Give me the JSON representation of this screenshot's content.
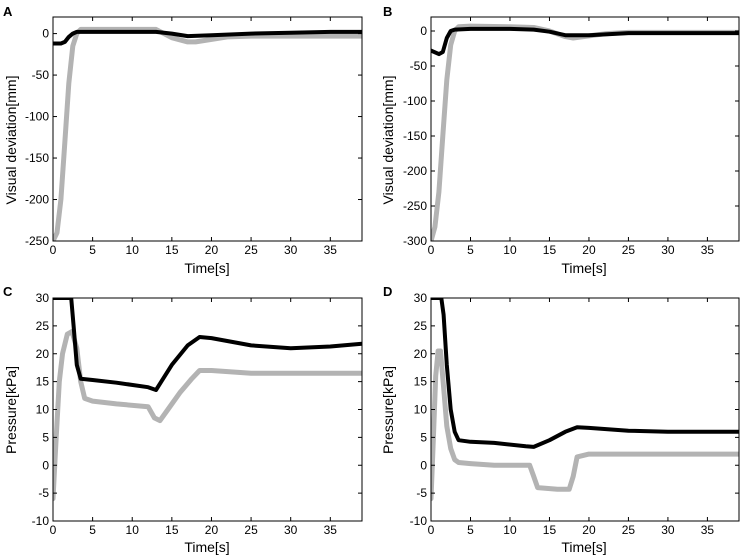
{
  "chart_data": [
    {
      "type": "line",
      "panel": "A",
      "xlabel": "Time[s]",
      "ylabel": "Visual deviation[mm]",
      "xlim": [
        0,
        39
      ],
      "ylim": [
        -250,
        20
      ],
      "xticks": [
        0,
        5,
        10,
        15,
        20,
        25,
        30,
        35
      ],
      "yticks": [
        -250,
        -200,
        -150,
        -100,
        -50,
        0
      ],
      "series": [
        {
          "name": "black",
          "color": "#000000",
          "x": [
            0,
            1,
            1.5,
            2,
            2.5,
            3,
            5,
            10,
            13,
            15,
            17,
            20,
            25,
            30,
            35,
            39
          ],
          "y": [
            -12,
            -12,
            -10,
            -4,
            0,
            2,
            2,
            2,
            2,
            0,
            -3,
            -2,
            0,
            1,
            2,
            2
          ]
        },
        {
          "name": "gray",
          "color": "#b3b3b3",
          "x": [
            0,
            0.5,
            1,
            1.5,
            2,
            2.5,
            3,
            3.5,
            5,
            10,
            13,
            14,
            15,
            17,
            18,
            20,
            22,
            25,
            30,
            39
          ],
          "y": [
            -250,
            -240,
            -200,
            -130,
            -60,
            -15,
            0,
            5,
            5,
            5,
            5,
            0,
            -5,
            -10,
            -10,
            -7,
            -4,
            -3,
            -3,
            -3
          ]
        }
      ]
    },
    {
      "type": "line",
      "panel": "B",
      "xlabel": "Time[s]",
      "ylabel": "Visual deviation[mm]",
      "xlim": [
        0,
        39
      ],
      "ylim": [
        -300,
        20
      ],
      "xticks": [
        0,
        5,
        10,
        15,
        20,
        25,
        30,
        35
      ],
      "yticks": [
        -300,
        -250,
        -200,
        -150,
        -100,
        -50,
        0
      ],
      "series": [
        {
          "name": "black",
          "color": "#000000",
          "x": [
            0,
            1,
            1.5,
            2,
            2.5,
            3,
            5,
            10,
            13,
            15,
            17,
            20,
            25,
            30,
            35,
            39
          ],
          "y": [
            -28,
            -33,
            -30,
            -10,
            0,
            2,
            3,
            3,
            2,
            -1,
            -6,
            -6,
            -3,
            -3,
            -3,
            -3
          ]
        },
        {
          "name": "gray",
          "color": "#b3b3b3",
          "x": [
            0,
            0.5,
            1,
            1.5,
            2,
            2.5,
            3,
            3.5,
            5,
            10,
            13,
            15,
            17,
            18,
            20,
            22,
            25,
            30,
            39
          ],
          "y": [
            -300,
            -280,
            -230,
            -150,
            -70,
            -20,
            0,
            6,
            7,
            6,
            5,
            0,
            -8,
            -10,
            -7,
            -4,
            -2,
            -2,
            -2
          ]
        }
      ]
    },
    {
      "type": "line",
      "panel": "C",
      "xlabel": "Time[s]",
      "ylabel": "Pressure[kPa]",
      "xlim": [
        0,
        39
      ],
      "ylim": [
        -10,
        30
      ],
      "xticks": [
        0,
        5,
        10,
        15,
        20,
        25,
        30,
        35
      ],
      "yticks": [
        -10,
        -5,
        0,
        5,
        10,
        15,
        20,
        25,
        30
      ],
      "series": [
        {
          "name": "black",
          "color": "#000000",
          "x": [
            0,
            2.3,
            2.6,
            3,
            3.5,
            5,
            8,
            12,
            13,
            15,
            17,
            18.5,
            20,
            25,
            30,
            35,
            39
          ],
          "y": [
            30,
            30,
            25,
            18,
            15.5,
            15.3,
            14.8,
            14,
            13.5,
            18,
            21.5,
            23,
            22.8,
            21.5,
            21,
            21.3,
            21.8
          ]
        },
        {
          "name": "gray",
          "color": "#b3b3b3",
          "x": [
            0,
            0.4,
            0.8,
            1.2,
            1.8,
            2.4,
            3,
            3.5,
            4,
            5,
            8,
            12,
            12.8,
            13.5,
            14.5,
            16,
            17.5,
            18.5,
            20,
            25,
            30,
            35,
            39
          ],
          "y": [
            -6,
            5,
            15,
            20,
            23.5,
            24,
            21,
            15,
            12,
            11.5,
            11,
            10.5,
            8.5,
            8,
            10,
            13,
            15.5,
            17,
            17,
            16.5,
            16.5,
            16.5,
            16.5
          ]
        }
      ]
    },
    {
      "type": "line",
      "panel": "D",
      "xlabel": "Time[s]",
      "ylabel": "Pressure[kPa]",
      "xlim": [
        0,
        39
      ],
      "ylim": [
        -10,
        30
      ],
      "xticks": [
        0,
        5,
        10,
        15,
        20,
        25,
        30,
        35
      ],
      "yticks": [
        -10,
        -5,
        0,
        5,
        10,
        15,
        20,
        25,
        30
      ],
      "series": [
        {
          "name": "black",
          "color": "#000000",
          "x": [
            0,
            1.3,
            1.6,
            2,
            2.5,
            3,
            3.5,
            5,
            8,
            12,
            13,
            15,
            17,
            18.5,
            20,
            25,
            30,
            35,
            39
          ],
          "y": [
            30,
            30,
            27,
            18,
            10,
            6,
            4.5,
            4.2,
            4,
            3.4,
            3.3,
            4.5,
            6,
            6.8,
            6.7,
            6.2,
            6,
            6,
            6
          ]
        },
        {
          "name": "gray",
          "color": "#b3b3b3",
          "x": [
            0,
            0.3,
            0.6,
            0.9,
            1.2,
            1.6,
            2,
            2.5,
            3,
            3.5,
            5,
            8,
            12.5,
            13,
            13.5,
            16,
            17.5,
            18,
            18.5,
            20,
            25,
            30,
            35,
            39
          ],
          "y": [
            -6,
            5,
            16,
            20.5,
            20.5,
            14,
            7,
            3,
            1,
            0.5,
            0.3,
            0,
            0,
            -2,
            -4,
            -4.3,
            -4.3,
            -2,
            1.5,
            2,
            2,
            2,
            2,
            2
          ]
        }
      ]
    }
  ],
  "panels": [
    {
      "letter": "A",
      "xlabel": "Time[s]",
      "ylabel": "Visual deviation[mm]",
      "xticks": [
        "0",
        "5",
        "10",
        "15",
        "20",
        "25",
        "30",
        "35"
      ],
      "yticks": [
        "-250",
        "-200",
        "-150",
        "-100",
        "-50",
        "0"
      ]
    },
    {
      "letter": "B",
      "xlabel": "Time[s]",
      "ylabel": "Visual deviation[mm]",
      "xticks": [
        "0",
        "5",
        "10",
        "15",
        "20",
        "25",
        "30",
        "35"
      ],
      "yticks": [
        "-300",
        "-250",
        "-200",
        "-150",
        "-100",
        "-50",
        "0"
      ]
    },
    {
      "letter": "C",
      "xlabel": "Time[s]",
      "ylabel": "Pressure[kPa]",
      "xticks": [
        "0",
        "5",
        "10",
        "15",
        "20",
        "25",
        "30",
        "35"
      ],
      "yticks": [
        "-10",
        "-5",
        "0",
        "5",
        "10",
        "15",
        "20",
        "25",
        "30"
      ]
    },
    {
      "letter": "D",
      "xlabel": "Time[s]",
      "ylabel": "Pressure[kPa]",
      "xticks": [
        "0",
        "5",
        "10",
        "15",
        "20",
        "25",
        "30",
        "35"
      ],
      "yticks": [
        "-10",
        "-5",
        "0",
        "5",
        "10",
        "15",
        "20",
        "25",
        "30"
      ]
    }
  ]
}
